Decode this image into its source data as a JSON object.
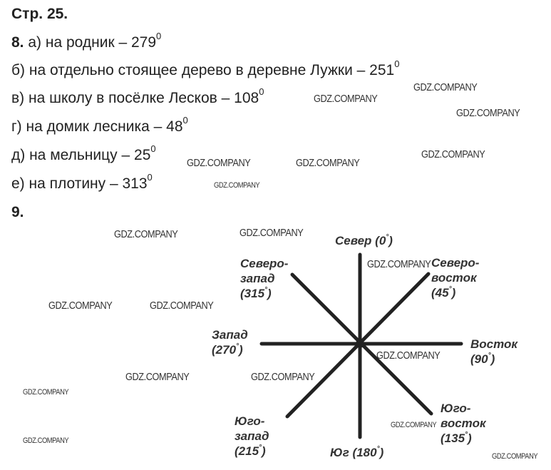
{
  "page_header": "Стр. 25.",
  "task8": {
    "number": "8.",
    "items": [
      {
        "text": "а) на родник – 279",
        "deg": "0"
      },
      {
        "text": "б) на отдельно стоящее дерево в деревне Лужки – 251",
        "deg": "0"
      },
      {
        "text": "в) на школу в посёлке Лесков – 108",
        "deg": "0"
      },
      {
        "text": "г) на домик лесника – 48",
        "deg": "0"
      },
      {
        "text": "д) на мельницу – 25",
        "deg": "0"
      },
      {
        "text": "е) на плотину – 313",
        "deg": "0"
      }
    ]
  },
  "task9": {
    "number": "9.",
    "compass": {
      "north": {
        "name": "Север",
        "value": "(0",
        "deg": "°",
        "close": ")"
      },
      "northeast": {
        "line1": "Северо-",
        "line2": "восток",
        "value": "(45",
        "deg": "°",
        "close": ")"
      },
      "east": {
        "name": "Восток",
        "value": "(90",
        "deg": "°",
        "close": ")"
      },
      "southeast": {
        "line1": "Юго-",
        "line2": "восток",
        "value": "(135",
        "deg": "°",
        "close": ")"
      },
      "south": {
        "name": "Юг",
        "value": "(180",
        "deg": "°",
        "close": ")"
      },
      "southwest": {
        "line1": "Юго-",
        "line2": "запад",
        "value": "(215",
        "deg": "°",
        "close": ")"
      },
      "west": {
        "name": "Запад",
        "value": "(270",
        "deg": "°",
        "close": ")"
      },
      "northwest": {
        "line1": "Северо-",
        "line2": "запад",
        "value": "(315",
        "deg": "°",
        "close": ")"
      }
    }
  },
  "watermark": "GDZ.COMPANY",
  "colors": {
    "text": "#222222",
    "lines": "#222222"
  }
}
